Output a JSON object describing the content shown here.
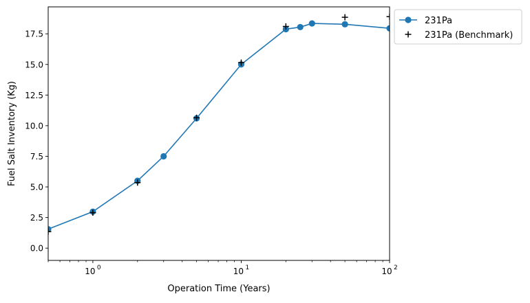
{
  "chart_data": {
    "type": "line",
    "xscale": "log",
    "xlabel": "Operation Time (Years)",
    "ylabel": "Fuel Salt Inventory (Kg)",
    "xlim": [
      0.5,
      100
    ],
    "ylim": [
      -1.0,
      19.7
    ],
    "x_ticks": [
      {
        "value": 1,
        "label": "10",
        "exp": "0"
      },
      {
        "value": 10,
        "label": "10",
        "exp": "1"
      },
      {
        "value": 100,
        "label": "10",
        "exp": "2"
      }
    ],
    "y_ticks": [
      {
        "value": 0.0,
        "label": "0.0"
      },
      {
        "value": 2.5,
        "label": "2.5"
      },
      {
        "value": 5.0,
        "label": "5.0"
      },
      {
        "value": 7.5,
        "label": "7.5"
      },
      {
        "value": 10.0,
        "label": "10.0"
      },
      {
        "value": 12.5,
        "label": "12.5"
      },
      {
        "value": 15.0,
        "label": "15.0"
      },
      {
        "value": 17.5,
        "label": "17.5"
      }
    ],
    "grid": false,
    "legend_position": "outside-upper-right",
    "series": [
      {
        "name": "231Pa",
        "marker": "circle",
        "line": true,
        "color": "#1f77b4",
        "x": [
          0.5,
          1,
          2,
          3,
          5,
          10,
          20,
          25,
          30,
          50,
          100
        ],
        "y": [
          1.55,
          2.98,
          5.5,
          7.5,
          10.6,
          15.0,
          17.88,
          18.05,
          18.35,
          18.28,
          17.95
        ]
      },
      {
        "name": "231Pa (Benchmark)",
        "marker": "plus",
        "line": false,
        "color": "#000000",
        "x": [
          0.5,
          1,
          2,
          5,
          10,
          20,
          50,
          100
        ],
        "y": [
          1.35,
          2.9,
          5.35,
          10.65,
          15.15,
          18.1,
          18.85,
          18.9
        ]
      }
    ]
  }
}
